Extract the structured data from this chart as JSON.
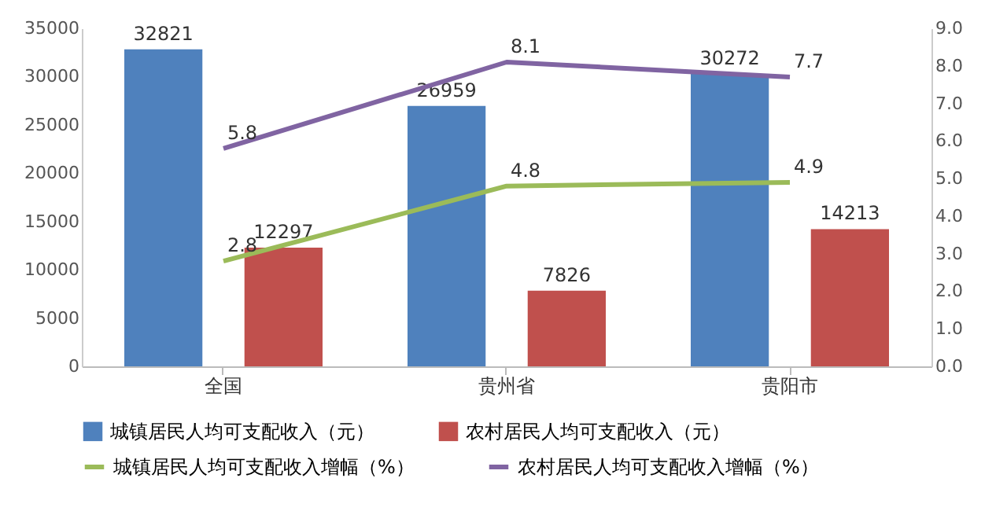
{
  "chart_data": {
    "type": "bar",
    "categories": [
      "全国",
      "贵州省",
      "贵阳市"
    ],
    "series": [
      {
        "name": "城镇居民人均可支配收入（元）",
        "color": "#4f81bd",
        "values": [
          32821,
          26959,
          30272
        ]
      },
      {
        "name": "农村居民人均可支配收入（元）",
        "color": "#c0504d",
        "values": [
          12297,
          7826,
          14213
        ]
      },
      {
        "name": "城镇居民人均可支配收入增幅（%）",
        "type": "line",
        "axis": "y2",
        "color": "#9bbb59",
        "values": [
          2.8,
          4.8,
          4.9
        ]
      },
      {
        "name": "农村居民人均可支配收入增幅（%）",
        "type": "line",
        "axis": "y2",
        "color": "#8064a2",
        "values": [
          5.8,
          8.1,
          7.7
        ]
      }
    ],
    "ylim": [
      0,
      35000
    ],
    "yticks": [
      0,
      5000,
      10000,
      15000,
      20000,
      25000,
      30000,
      35000
    ],
    "y2lim": [
      0,
      9
    ],
    "y2ticks": [
      {
        "value": 0,
        "label": "0.0"
      },
      {
        "value": 1,
        "label": "1.0"
      },
      {
        "value": 2,
        "label": "2.0"
      },
      {
        "value": 3,
        "label": "3.0"
      },
      {
        "value": 4,
        "label": "4.0"
      },
      {
        "value": 5,
        "label": "5.0"
      },
      {
        "value": 6,
        "label": "6.0"
      },
      {
        "value": 7,
        "label": "7.0"
      },
      {
        "value": 8,
        "label": "8.0"
      },
      {
        "value": 9,
        "label": "9.0"
      }
    ],
    "data_labels": true,
    "legend": "bottom"
  }
}
